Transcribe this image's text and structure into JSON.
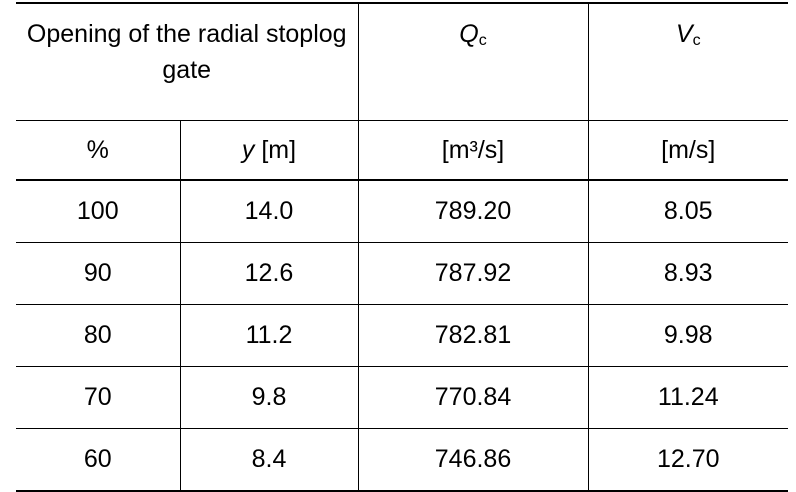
{
  "table": {
    "header": [
      "Opening of the radial stoplog gate",
      {
        "symbol": "Q",
        "subscript": "c"
      },
      {
        "symbol": "V",
        "subscript": "c"
      }
    ],
    "units": [
      "%",
      {
        "symbol": "y",
        "unit": "[m]"
      },
      "[m³/s]",
      "[m/s]"
    ],
    "rows": [
      [
        "100",
        "14.0",
        "789.20",
        "8.05"
      ],
      [
        "90",
        "12.6",
        "787.92",
        "8.93"
      ],
      [
        "80",
        "11.2",
        "782.81",
        "9.98"
      ],
      [
        "70",
        "9.8",
        "770.84",
        "11.24"
      ],
      [
        "60",
        "8.4",
        "746.86",
        "12.70"
      ]
    ]
  }
}
